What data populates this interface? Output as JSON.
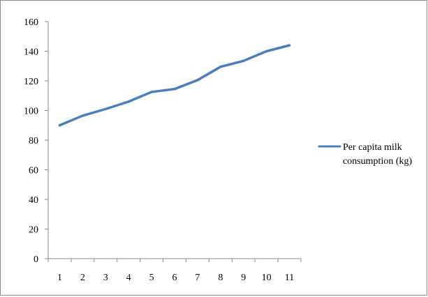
{
  "chart_data": {
    "type": "line",
    "title": "",
    "xlabel": "",
    "ylabel": "",
    "x": [
      1,
      2,
      3,
      4,
      5,
      6,
      7,
      8,
      9,
      10,
      11
    ],
    "ylim": [
      0,
      160
    ],
    "yticks": [
      0,
      20,
      40,
      60,
      80,
      100,
      120,
      140,
      160
    ],
    "grid": false,
    "legend_position": "right",
    "series": [
      {
        "name": "Per capita milk consumption (kg)",
        "legend_lines": [
          "Per capita milk",
          "consumption (kg)"
        ],
        "color": "#4a7ebb",
        "values": [
          90,
          96.5,
          101,
          106,
          112.5,
          114.5,
          120.5,
          129.5,
          133.5,
          140,
          144
        ]
      }
    ]
  }
}
